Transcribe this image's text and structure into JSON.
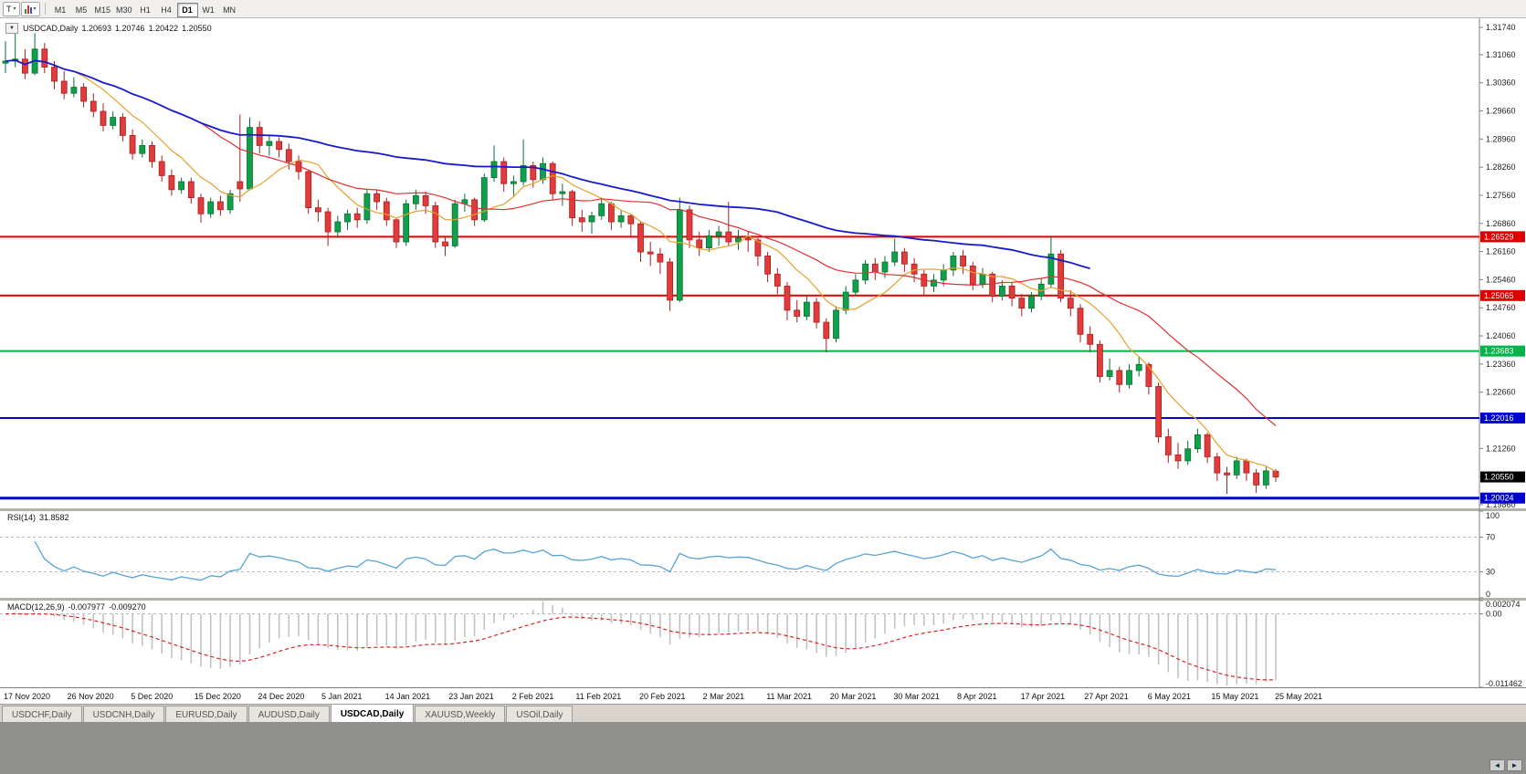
{
  "icons": {
    "caret": "▾",
    "collapse": "▼",
    "scroll_left": "◄",
    "scroll_right": "►"
  },
  "toolbar": {
    "tool_button_label": "T",
    "timeframes": [
      {
        "label": "M1",
        "active": false
      },
      {
        "label": "M5",
        "active": false
      },
      {
        "label": "M15",
        "active": false
      },
      {
        "label": "M30",
        "active": false
      },
      {
        "label": "H1",
        "active": false
      },
      {
        "label": "H4",
        "active": false
      },
      {
        "label": "D1",
        "active": true
      },
      {
        "label": "W1",
        "active": false
      },
      {
        "label": "MN",
        "active": false
      }
    ]
  },
  "symbol_header": {
    "title": "USDCAD,Daily",
    "open": "1.20693",
    "high": "1.20746",
    "low": "1.20422",
    "close": "1.20550"
  },
  "tabs": [
    {
      "label": "USDCHF,Daily",
      "active": false
    },
    {
      "label": "USDCNH,Daily",
      "active": false
    },
    {
      "label": "EURUSD,Daily",
      "active": false
    },
    {
      "label": "AUDUSD,Daily",
      "active": false
    },
    {
      "label": "USDCAD,Daily",
      "active": true
    },
    {
      "label": "XAUUSD,Weekly",
      "active": false
    },
    {
      "label": "USOil,Daily",
      "active": false
    }
  ],
  "chart_data": {
    "type": "candlestick",
    "symbol": "USDCAD",
    "timeframe": "Daily",
    "y_range": [
      1.19767,
      1.31967
    ],
    "y_ticks": [
      "1.31740",
      "1.31060",
      "1.30360",
      "1.29660",
      "1.28960",
      "1.28260",
      "1.27560",
      "1.26860",
      "1.26160",
      "1.25460",
      "1.24760",
      "1.24060",
      "1.23360",
      "1.22660",
      "1.21960",
      "1.21260",
      "1.20560",
      "1.19860"
    ],
    "x_labels": [
      "17 Nov 2020",
      "26 Nov 2020",
      "5 Dec 2020",
      "15 Dec 2020",
      "24 Dec 2020",
      "5 Jan 2021",
      "14 Jan 2021",
      "23 Jan 2021",
      "2 Feb 2021",
      "11 Feb 2021",
      "20 Feb 2021",
      "2 Mar 2021",
      "11 Mar 2021",
      "20 Mar 2021",
      "30 Mar 2021",
      "8 Apr 2021",
      "17 Apr 2021",
      "27 Apr 2021",
      "6 May 2021",
      "15 May 2021",
      "25 May 2021"
    ],
    "colors": {
      "up": "#0fa04a",
      "up_dark": "#0a6e33",
      "down": "#e23b3b",
      "down_dark": "#a81f1f"
    },
    "hlines": [
      {
        "label": "1.26529",
        "value": 1.26529,
        "color": "#e00000",
        "width": 2
      },
      {
        "label": "1.25065",
        "value": 1.25065,
        "color": "#e00000",
        "width": 2
      },
      {
        "label": "1.23683",
        "value": 1.23683,
        "color": "#00b34a",
        "width": 2
      },
      {
        "label": "1.22016",
        "value": 1.22016,
        "color": "#0000d0",
        "width": 2
      },
      {
        "label": "1.20024",
        "value": 1.20024,
        "color": "#0000d0",
        "width": 3
      }
    ],
    "current_price": {
      "label": "1.20550",
      "value": 1.2055,
      "color": "#000000"
    },
    "moving_averages": [
      {
        "name": "fast",
        "period": 8,
        "color": "#e8a02c",
        "width": 1.2,
        "clip_fraction": 1
      },
      {
        "name": "mid",
        "period": 21,
        "color": "#e03030",
        "width": 1.2,
        "clip_fraction": 1
      },
      {
        "name": "slow",
        "period": 55,
        "color": "#1a1acd",
        "width": 1.8,
        "clip_fraction": 0.86
      }
    ],
    "rsi": {
      "label": "RSI(14)",
      "value": "31.8582",
      "period": 14,
      "levels": [
        70,
        30
      ],
      "ticks": [
        "100",
        "70",
        "30",
        "0"
      ],
      "color": "#58a3d6"
    },
    "macd": {
      "label": "MACD(12,26,9)",
      "main": "-0.007977",
      "signal": "-0.009270",
      "fast": 12,
      "slow": 26,
      "signal_period": 9,
      "range": [
        -0.011462,
        0.002074
      ],
      "ticks_top": "0.002074",
      "ticks_zero": "0.00",
      "ticks_bottom": "-0.011462",
      "hist_color": "#c2c2c2",
      "signal_color": "#e02020"
    },
    "candles": [
      [
        1.3085,
        1.314,
        1.306,
        1.309
      ],
      [
        1.309,
        1.317,
        1.3075,
        1.3095
      ],
      [
        1.3095,
        1.312,
        1.3045,
        1.306
      ],
      [
        1.306,
        1.316,
        1.3055,
        1.312
      ],
      [
        1.312,
        1.3135,
        1.306,
        1.3075
      ],
      [
        1.3075,
        1.309,
        1.302,
        1.304
      ],
      [
        1.304,
        1.3065,
        1.2995,
        1.301
      ],
      [
        1.301,
        1.305,
        1.3,
        1.3025
      ],
      [
        1.3025,
        1.3035,
        1.2975,
        1.299
      ],
      [
        1.299,
        1.301,
        1.295,
        1.2965
      ],
      [
        1.2965,
        1.2985,
        1.2915,
        1.293
      ],
      [
        1.293,
        1.2965,
        1.292,
        1.295
      ],
      [
        1.295,
        1.296,
        1.289,
        1.2905
      ],
      [
        1.2905,
        1.292,
        1.2845,
        1.286
      ],
      [
        1.286,
        1.2895,
        1.285,
        1.288
      ],
      [
        1.288,
        1.289,
        1.2825,
        1.284
      ],
      [
        1.284,
        1.2855,
        1.279,
        1.2805
      ],
      [
        1.2805,
        1.282,
        1.2755,
        1.277
      ],
      [
        1.277,
        1.28,
        1.276,
        1.279
      ],
      [
        1.279,
        1.28,
        1.2735,
        1.275
      ],
      [
        1.275,
        1.276,
        1.2688,
        1.271
      ],
      [
        1.271,
        1.275,
        1.27,
        1.274
      ],
      [
        1.274,
        1.2755,
        1.2705,
        1.272
      ],
      [
        1.272,
        1.277,
        1.271,
        1.276
      ],
      [
        1.279,
        1.2957,
        1.274,
        1.2772
      ],
      [
        1.2772,
        1.295,
        1.2768,
        1.2925
      ],
      [
        1.2925,
        1.294,
        1.286,
        1.288
      ],
      [
        1.288,
        1.2905,
        1.2855,
        1.289
      ],
      [
        1.289,
        1.29,
        1.285,
        1.287
      ],
      [
        1.287,
        1.2885,
        1.282,
        1.284
      ],
      [
        1.284,
        1.2855,
        1.2795,
        1.2815
      ],
      [
        1.2815,
        1.282,
        1.271,
        1.2725
      ],
      [
        1.2725,
        1.2745,
        1.269,
        1.2715
      ],
      [
        1.2715,
        1.2725,
        1.263,
        1.2665
      ],
      [
        1.2665,
        1.2705,
        1.265,
        1.269
      ],
      [
        1.269,
        1.272,
        1.267,
        1.271
      ],
      [
        1.271,
        1.2725,
        1.2675,
        1.2695
      ],
      [
        1.2695,
        1.277,
        1.2685,
        1.276
      ],
      [
        1.276,
        1.277,
        1.272,
        1.274
      ],
      [
        1.274,
        1.275,
        1.268,
        1.2695
      ],
      [
        1.2695,
        1.27,
        1.2625,
        1.264
      ],
      [
        1.264,
        1.2745,
        1.263,
        1.2735
      ],
      [
        1.2735,
        1.277,
        1.272,
        1.2755
      ],
      [
        1.2755,
        1.2765,
        1.271,
        1.273
      ],
      [
        1.273,
        1.274,
        1.2625,
        1.264
      ],
      [
        1.264,
        1.2655,
        1.2605,
        1.263
      ],
      [
        1.263,
        1.2745,
        1.2625,
        1.2735
      ],
      [
        1.2735,
        1.276,
        1.2715,
        1.2745
      ],
      [
        1.2745,
        1.275,
        1.268,
        1.2695
      ],
      [
        1.2695,
        1.281,
        1.269,
        1.28
      ],
      [
        1.28,
        1.288,
        1.279,
        1.284
      ],
      [
        1.284,
        1.285,
        1.2765,
        1.2785
      ],
      [
        1.2785,
        1.2805,
        1.2755,
        1.279
      ],
      [
        1.279,
        1.2895,
        1.278,
        1.283
      ],
      [
        1.283,
        1.284,
        1.2775,
        1.2795
      ],
      [
        1.2795,
        1.285,
        1.2785,
        1.2835
      ],
      [
        1.2835,
        1.284,
        1.2745,
        1.276
      ],
      [
        1.276,
        1.2785,
        1.273,
        1.2765
      ],
      [
        1.2765,
        1.277,
        1.268,
        1.27
      ],
      [
        1.27,
        1.272,
        1.2665,
        1.269
      ],
      [
        1.269,
        1.2715,
        1.266,
        1.2705
      ],
      [
        1.2705,
        1.275,
        1.2695,
        1.2735
      ],
      [
        1.2735,
        1.274,
        1.267,
        1.269
      ],
      [
        1.269,
        1.272,
        1.2675,
        1.2705
      ],
      [
        1.2705,
        1.271,
        1.2655,
        1.2685
      ],
      [
        1.2685,
        1.269,
        1.259,
        1.2615
      ],
      [
        1.2615,
        1.264,
        1.258,
        1.261
      ],
      [
        1.261,
        1.2625,
        1.256,
        1.259
      ],
      [
        1.259,
        1.26,
        1.2468,
        1.2495
      ],
      [
        1.2495,
        1.275,
        1.249,
        1.272
      ],
      [
        1.272,
        1.273,
        1.2625,
        1.2645
      ],
      [
        1.2645,
        1.2665,
        1.2605,
        1.2625
      ],
      [
        1.2625,
        1.267,
        1.2615,
        1.2655
      ],
      [
        1.2655,
        1.268,
        1.263,
        1.2665
      ],
      [
        1.2665,
        1.274,
        1.263,
        1.264
      ],
      [
        1.264,
        1.267,
        1.262,
        1.265
      ],
      [
        1.265,
        1.2665,
        1.2615,
        1.2645
      ],
      [
        1.2645,
        1.265,
        1.258,
        1.2605
      ],
      [
        1.2605,
        1.2615,
        1.254,
        1.256
      ],
      [
        1.256,
        1.2575,
        1.251,
        1.253
      ],
      [
        1.253,
        1.254,
        1.2445,
        1.247
      ],
      [
        1.247,
        1.2495,
        1.244,
        1.2455
      ],
      [
        1.2455,
        1.2505,
        1.2445,
        1.249
      ],
      [
        1.249,
        1.25,
        1.2425,
        1.244
      ],
      [
        1.244,
        1.245,
        1.2365,
        1.24
      ],
      [
        1.24,
        1.248,
        1.239,
        1.247
      ],
      [
        1.247,
        1.253,
        1.246,
        1.2515
      ],
      [
        1.2515,
        1.256,
        1.2505,
        1.2545
      ],
      [
        1.2545,
        1.2595,
        1.2535,
        1.2585
      ],
      [
        1.2585,
        1.26,
        1.2545,
        1.2565
      ],
      [
        1.2565,
        1.2605,
        1.255,
        1.259
      ],
      [
        1.259,
        1.2648,
        1.258,
        1.2615
      ],
      [
        1.2615,
        1.2625,
        1.2565,
        1.2585
      ],
      [
        1.2585,
        1.26,
        1.254,
        1.256
      ],
      [
        1.256,
        1.257,
        1.2505,
        1.253
      ],
      [
        1.253,
        1.256,
        1.2515,
        1.2545
      ],
      [
        1.2545,
        1.2585,
        1.253,
        1.257
      ],
      [
        1.257,
        1.2615,
        1.2555,
        1.2605
      ],
      [
        1.2605,
        1.262,
        1.256,
        1.258
      ],
      [
        1.258,
        1.259,
        1.252,
        1.2535
      ],
      [
        1.2535,
        1.2575,
        1.2525,
        1.256
      ],
      [
        1.256,
        1.2565,
        1.249,
        1.2505
      ],
      [
        1.2505,
        1.2545,
        1.2495,
        1.253
      ],
      [
        1.253,
        1.254,
        1.248,
        1.25
      ],
      [
        1.25,
        1.251,
        1.2455,
        1.2475
      ],
      [
        1.2475,
        1.2515,
        1.2465,
        1.2505
      ],
      [
        1.2505,
        1.255,
        1.2495,
        1.2535
      ],
      [
        1.2535,
        1.2654,
        1.2525,
        1.261
      ],
      [
        1.261,
        1.262,
        1.249,
        1.25
      ],
      [
        1.25,
        1.252,
        1.2455,
        1.2475
      ],
      [
        1.2475,
        1.2485,
        1.239,
        1.241
      ],
      [
        1.241,
        1.243,
        1.2365,
        1.2385
      ],
      [
        1.2385,
        1.2395,
        1.229,
        1.2305
      ],
      [
        1.2305,
        1.235,
        1.2295,
        1.232
      ],
      [
        1.232,
        1.233,
        1.2265,
        1.2285
      ],
      [
        1.2285,
        1.2335,
        1.2275,
        1.232
      ],
      [
        1.232,
        1.2355,
        1.2305,
        1.2335
      ],
      [
        1.2335,
        1.234,
        1.226,
        1.228
      ],
      [
        1.228,
        1.229,
        1.214,
        1.2155
      ],
      [
        1.2155,
        1.2175,
        1.209,
        1.211
      ],
      [
        1.211,
        1.214,
        1.2075,
        1.2095
      ],
      [
        1.2095,
        1.2145,
        1.2085,
        1.2125
      ],
      [
        1.2125,
        1.2175,
        1.2115,
        1.216
      ],
      [
        1.216,
        1.2165,
        1.209,
        1.2105
      ],
      [
        1.2105,
        1.2115,
        1.2045,
        1.2065
      ],
      [
        1.2065,
        1.208,
        1.2013,
        1.206
      ],
      [
        1.206,
        1.2105,
        1.205,
        1.2095
      ],
      [
        1.2095,
        1.21,
        1.2045,
        1.2065
      ],
      [
        1.2065,
        1.2075,
        1.2015,
        1.2035
      ],
      [
        1.2035,
        1.208,
        1.2025,
        1.207
      ],
      [
        1.20693,
        1.20746,
        1.20422,
        1.2055
      ]
    ]
  }
}
